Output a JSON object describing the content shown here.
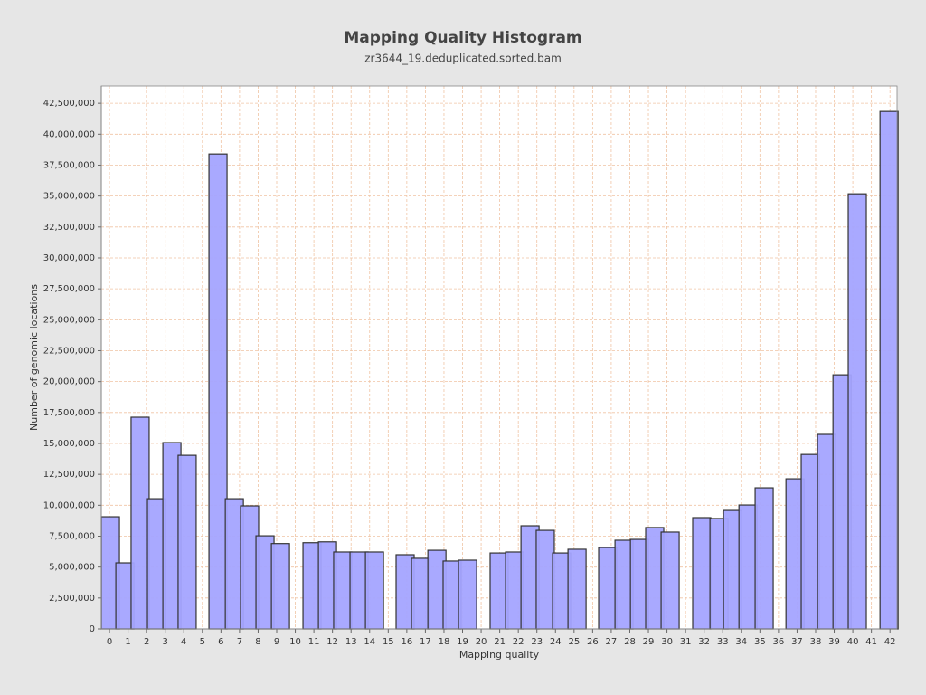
{
  "chart_data": {
    "type": "bar",
    "title": "Mapping Quality Histogram",
    "subtitle": "zr3644_19.deduplicated.sorted.bam",
    "x_label": "Mapping quality",
    "y_label": "Number of genomic locations",
    "color": "#a4a4ff",
    "grid": true,
    "x": [
      0.05,
      0.83,
      1.65,
      2.53,
      3.36,
      4.18,
      5.84,
      6.72,
      7.54,
      8.37,
      9.2,
      10.9,
      11.73,
      12.55,
      13.43,
      14.26,
      15.91,
      16.74,
      17.62,
      18.44,
      19.27,
      20.97,
      21.8,
      22.63,
      23.45,
      24.33,
      25.16,
      26.81,
      27.69,
      28.52,
      29.34,
      30.17,
      31.87,
      32.8,
      33.53,
      34.36,
      35.23,
      36.89,
      37.71,
      38.59,
      39.42,
      40.24,
      41.95
    ],
    "values": [
      9070000,
      5340000,
      17120000,
      10530000,
      15070000,
      14040000,
      38400000,
      10530000,
      9950000,
      7530000,
      6900000,
      6970000,
      7040000,
      6220000,
      6220000,
      6220000,
      6000000,
      5710000,
      6360000,
      5490000,
      5560000,
      6140000,
      6220000,
      8340000,
      7970000,
      6140000,
      6440000,
      6580000,
      7170000,
      7240000,
      8200000,
      7830000,
      9000000,
      8930000,
      9580000,
      10020000,
      11410000,
      12140000,
      14110000,
      15730000,
      20550000,
      35180000,
      41840000
    ],
    "xlim": [
      -0.44,
      42.38
    ],
    "xticks": [
      0,
      1,
      2,
      3,
      4,
      5,
      6,
      7,
      8,
      9,
      10,
      11,
      12,
      13,
      14,
      15,
      16,
      17,
      18,
      19,
      20,
      21,
      22,
      23,
      24,
      25,
      26,
      27,
      28,
      29,
      30,
      31,
      32,
      33,
      34,
      35,
      36,
      37,
      38,
      39,
      40,
      41,
      42
    ],
    "ylim": [
      0,
      43900000
    ],
    "yticks": [
      {
        "value": 0,
        "label": "0"
      },
      {
        "value": 2500000,
        "label": "2,500,000"
      },
      {
        "value": 5000000,
        "label": "5,000,000"
      },
      {
        "value": 7500000,
        "label": "7,500,000"
      },
      {
        "value": 10000000,
        "label": "10,000,000"
      },
      {
        "value": 12500000,
        "label": "12,500,000"
      },
      {
        "value": 15000000,
        "label": "15,000,000"
      },
      {
        "value": 17500000,
        "label": "17,500,000"
      },
      {
        "value": 20000000,
        "label": "20,000,000"
      },
      {
        "value": 22500000,
        "label": "22,500,000"
      },
      {
        "value": 25000000,
        "label": "25,000,000"
      },
      {
        "value": 27500000,
        "label": "27,500,000"
      },
      {
        "value": 30000000,
        "label": "30,000,000"
      },
      {
        "value": 32500000,
        "label": "32,500,000"
      },
      {
        "value": 35000000,
        "label": "35,000,000"
      },
      {
        "value": 37500000,
        "label": "37,500,000"
      },
      {
        "value": 40000000,
        "label": "40,000,000"
      },
      {
        "value": 42500000,
        "label": "42,500,000"
      }
    ]
  }
}
